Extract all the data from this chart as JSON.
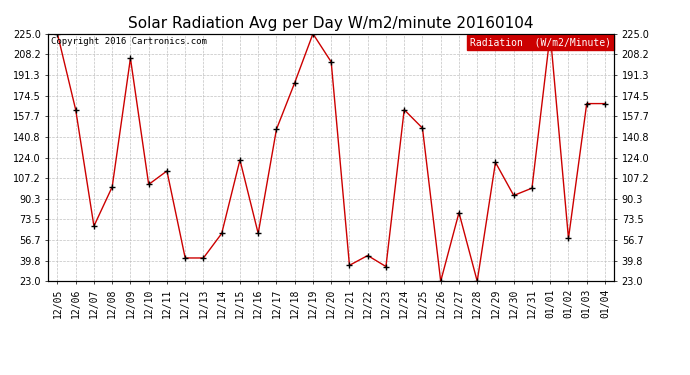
{
  "title": "Solar Radiation Avg per Day W/m2/minute 20160104",
  "copyright_text": "Copyright 2016 Cartronics.com",
  "legend_label": "Radiation  (W/m2/Minute)",
  "dates": [
    "12/05",
    "12/06",
    "12/07",
    "12/08",
    "12/09",
    "12/10",
    "12/11",
    "12/12",
    "12/13",
    "12/14",
    "12/15",
    "12/16",
    "12/17",
    "12/18",
    "12/19",
    "12/20",
    "12/21",
    "12/22",
    "12/23",
    "12/24",
    "12/25",
    "12/26",
    "12/27",
    "12/28",
    "12/29",
    "12/30",
    "12/31",
    "01/01",
    "01/02",
    "01/03",
    "01/04"
  ],
  "values": [
    225.0,
    163.0,
    68.0,
    100.0,
    205.0,
    102.0,
    113.0,
    42.0,
    42.0,
    62.0,
    122.0,
    62.0,
    147.0,
    185.0,
    225.0,
    202.0,
    36.0,
    44.0,
    35.0,
    163.0,
    148.0,
    23.0,
    79.0,
    23.0,
    120.0,
    93.0,
    99.0,
    225.0,
    58.0,
    168.0,
    168.0
  ],
  "line_color": "#cc0000",
  "marker_color": "#000000",
  "background_color": "#ffffff",
  "grid_color": "#bbbbbb",
  "ylim_min": 23.0,
  "ylim_max": 225.0,
  "yticks": [
    23.0,
    39.8,
    56.7,
    73.5,
    90.3,
    107.2,
    124.0,
    140.8,
    157.7,
    174.5,
    191.3,
    208.2,
    225.0
  ],
  "ytick_labels": [
    "23.0",
    "39.8",
    "56.7",
    "73.5",
    "90.3",
    "107.2",
    "124.0",
    "140.8",
    "157.7",
    "174.5",
    "191.3",
    "208.2",
    "225.0"
  ],
  "title_fontsize": 11,
  "tick_fontsize": 7,
  "legend_bg_color": "#cc0000",
  "legend_text_color": "#ffffff",
  "fig_width": 6.9,
  "fig_height": 3.75,
  "dpi": 100
}
